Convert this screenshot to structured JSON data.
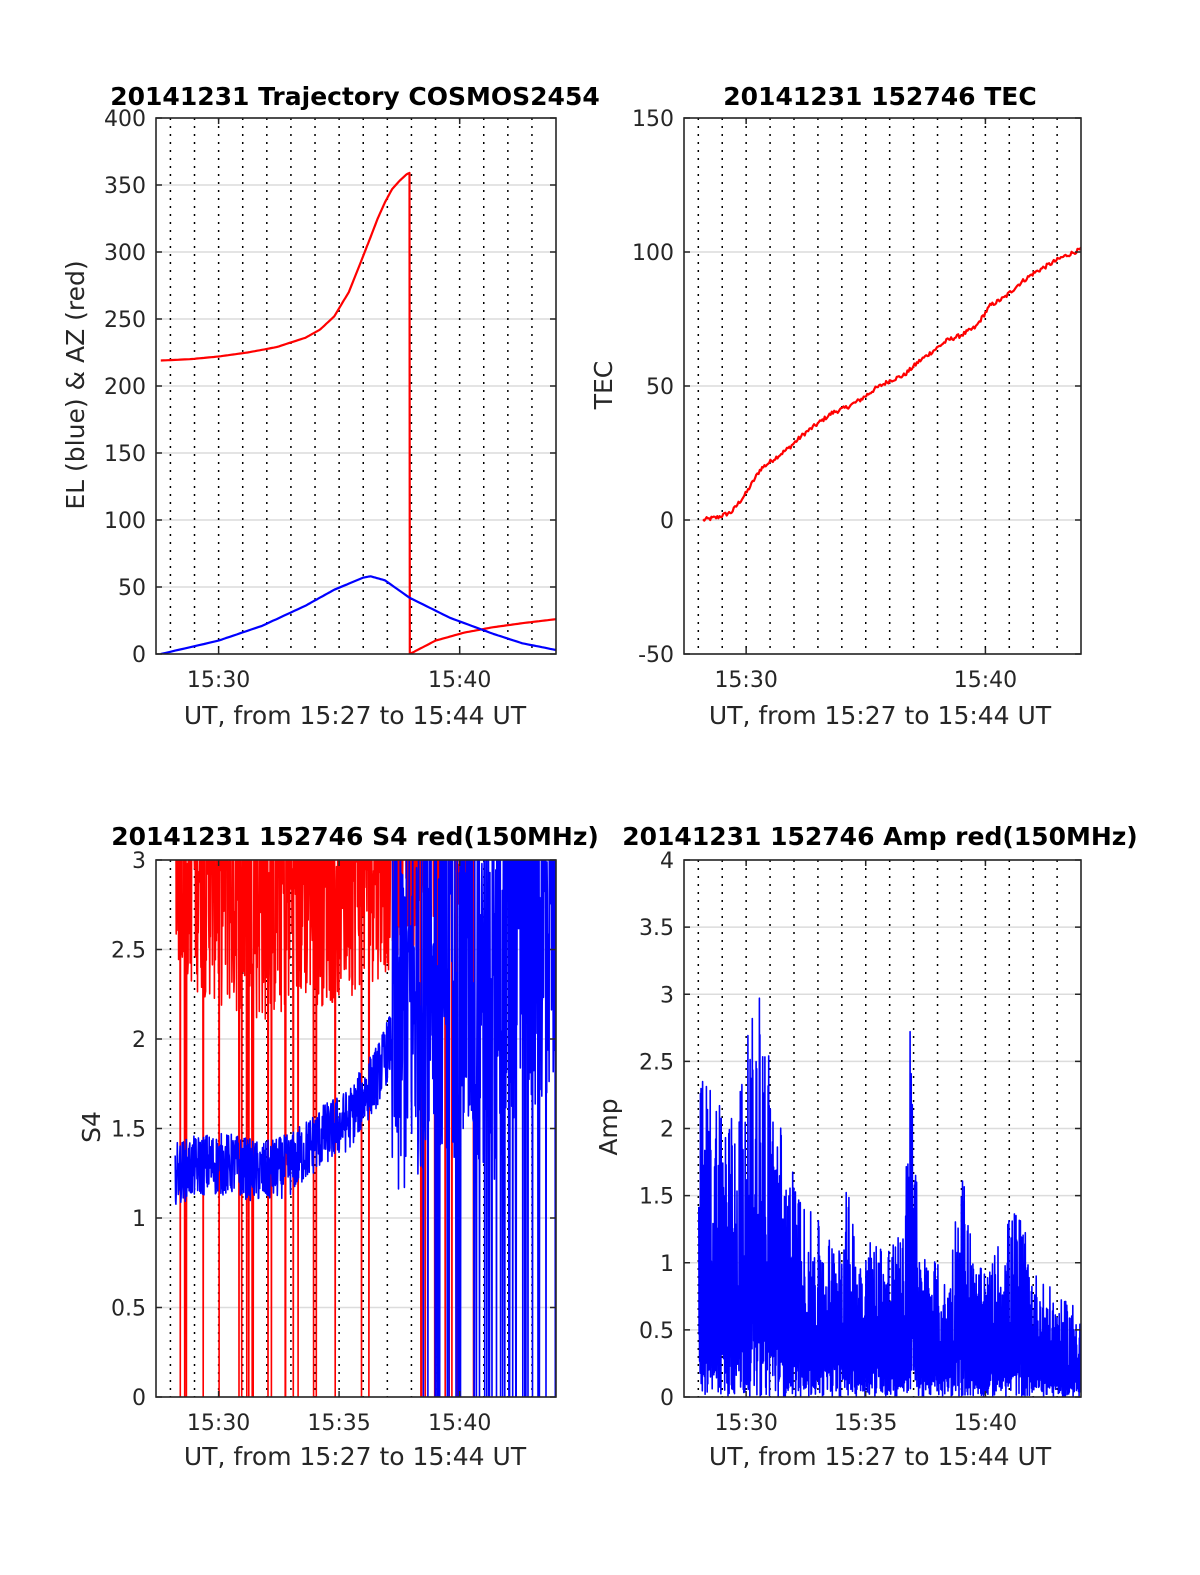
{
  "chart_data": [
    {
      "type": "line",
      "title": "20141231 Trajectory COSMOS2454",
      "xlabel": "UT, from 15:27 to 15:44 UT",
      "ylabel": "EL (blue) & AZ (red)",
      "xlim": [
        15.4567,
        15.7333
      ],
      "ylim": [
        0,
        400
      ],
      "xtick_values": [
        15.5,
        15.6667
      ],
      "xtick_labels": [
        "15:30",
        "15:40"
      ],
      "yticks": [
        0,
        50,
        100,
        150,
        200,
        250,
        300,
        350,
        400
      ],
      "grid": "dotted vertical every minute, light horizontal on y ticks",
      "series": [
        {
          "color": "#ff0000",
          "x": [
            15.46,
            15.48,
            15.5,
            15.52,
            15.54,
            15.56,
            15.57,
            15.58,
            15.59,
            15.6,
            15.61,
            15.615,
            15.62,
            15.625,
            15.63,
            15.632,
            15.6322,
            15.65,
            15.67,
            15.69,
            15.71,
            15.7333
          ],
          "values": [
            219,
            220,
            222,
            225,
            229,
            236,
            242,
            252,
            270,
            297,
            325,
            337,
            347,
            353,
            358,
            359,
            0,
            10,
            16,
            20,
            23,
            26
          ]
        },
        {
          "color": "#0000ff",
          "x": [
            15.46,
            15.5,
            15.53,
            15.56,
            15.58,
            15.6,
            15.605,
            15.615,
            15.632,
            15.66,
            15.69,
            15.71,
            15.7333
          ],
          "values": [
            0,
            10,
            21,
            36,
            48,
            57,
            58,
            55,
            42,
            27,
            15,
            8,
            3
          ]
        }
      ]
    },
    {
      "type": "line",
      "title": "20141231 152746 TEC",
      "xlabel": "UT, from 15:27 to 15:44 UT",
      "ylabel": "TEC",
      "xlim": [
        15.4567,
        15.7333
      ],
      "ylim": [
        -50,
        150
      ],
      "xtick_values": [
        15.5,
        15.6667
      ],
      "xtick_labels": [
        "15:30",
        "15:40"
      ],
      "yticks": [
        -50,
        0,
        50,
        100,
        150
      ],
      "grid": "dotted vertical every minute, light horizontal on y ticks",
      "series": [
        {
          "color": "#ff0000",
          "x": [
            15.47,
            15.48,
            15.49,
            15.5,
            15.51,
            15.52,
            15.53,
            15.54,
            15.55,
            15.56,
            15.57,
            15.58,
            15.59,
            15.6,
            15.61,
            15.62,
            15.63,
            15.64,
            15.65,
            15.66,
            15.67,
            15.68,
            15.69,
            15.7,
            15.71,
            15.72,
            15.7333
          ],
          "values": [
            0,
            1,
            3,
            10,
            19,
            23,
            27,
            32,
            36,
            40,
            42,
            45,
            49,
            52,
            54,
            59,
            63,
            67,
            69,
            72,
            80,
            83,
            88,
            92,
            95,
            98,
            101
          ]
        }
      ]
    },
    {
      "type": "line",
      "title": "20141231 152746 S4 red(150MHz)",
      "xlabel": "UT, from 15:27 to 15:44 UT",
      "ylabel": "S4",
      "xlim": [
        15.4567,
        15.7333
      ],
      "ylim": [
        0,
        3
      ],
      "xtick_values": [
        15.5,
        15.5833,
        15.6667
      ],
      "xtick_labels": [
        "15:30",
        "15:35",
        "15:40"
      ],
      "yticks": [
        0,
        0.5,
        1,
        1.5,
        2,
        2.5,
        3
      ],
      "grid": "dotted vertical every minute, light horizontal on y ticks",
      "series": [
        {
          "color": "#ff0000",
          "note_type": "noisy",
          "x": [
            15.47,
            15.48,
            15.5,
            15.52,
            15.54,
            15.56,
            15.58,
            15.6,
            15.62,
            15.64,
            15.66,
            15.68
          ],
          "values": [
            2.7,
            2.6,
            2.5,
            2.4,
            2.4,
            2.5,
            2.5,
            2.6,
            2.7,
            2.8,
            2.9,
            3.0
          ]
        },
        {
          "color": "#0000ff",
          "note_type": "noisy",
          "x": [
            15.47,
            15.49,
            15.51,
            15.53,
            15.55,
            15.57,
            15.59,
            15.61,
            15.63,
            15.65,
            15.67,
            15.69,
            15.71,
            15.7333
          ],
          "values": [
            1.25,
            1.3,
            1.3,
            1.25,
            1.3,
            1.45,
            1.55,
            1.8,
            2.2,
            2.5,
            2.4,
            2.3,
            2.6,
            2.8
          ]
        }
      ]
    },
    {
      "type": "line",
      "title": "20141231 152746 Amp red(150MHz)",
      "xlabel": "UT, from 15:27 to 15:44 UT",
      "ylabel": "Amp",
      "xlim": [
        15.4567,
        15.7333
      ],
      "ylim": [
        0,
        4
      ],
      "xtick_values": [
        15.5,
        15.5833,
        15.6667
      ],
      "xtick_labels": [
        "15:30",
        "15:35",
        "15:40"
      ],
      "yticks": [
        0,
        0.5,
        1,
        1.5,
        2,
        2.5,
        3,
        3.5,
        4
      ],
      "grid": "dotted vertical every minute, light horizontal on y ticks",
      "series": [
        {
          "color": "#0000ff",
          "note_type": "noisy envelope from 0",
          "x": [
            15.467,
            15.48,
            15.49,
            15.5,
            15.51,
            15.52,
            15.53,
            15.54,
            15.55,
            15.56,
            15.57,
            15.58,
            15.59,
            15.6,
            15.61,
            15.615,
            15.62,
            15.63,
            15.64,
            15.65,
            15.66,
            15.67,
            15.68,
            15.69,
            15.7,
            15.71,
            15.72,
            15.7333
          ],
          "values": [
            2.0,
            2.0,
            1.8,
            2.2,
            2.6,
            1.9,
            1.5,
            1.2,
            1.1,
            1.0,
            1.3,
            1.0,
            1.0,
            1.0,
            1.0,
            2.9,
            0.9,
            0.9,
            0.7,
            1.5,
            0.8,
            0.8,
            1.1,
            1.2,
            0.8,
            0.7,
            0.6,
            0.6
          ]
        }
      ]
    }
  ]
}
